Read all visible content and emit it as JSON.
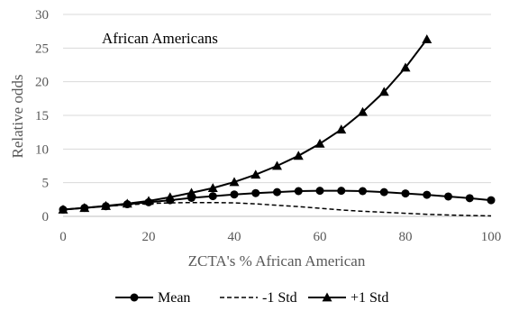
{
  "chart_data": {
    "type": "line",
    "annotation": "African Americans",
    "xlabel": "ZCTA's % African American",
    "ylabel": "Relative odds",
    "xlim": [
      0,
      100
    ],
    "ylim": [
      0,
      30
    ],
    "x_ticks": [
      0,
      20,
      40,
      60,
      80,
      100
    ],
    "y_ticks": [
      0,
      5,
      10,
      15,
      20,
      25,
      30
    ],
    "grid": "horizontal",
    "legend_position": "bottom",
    "series": [
      {
        "name": "Mean",
        "marker": "circle",
        "line_style": "solid",
        "color": "#000000",
        "x": [
          0,
          5,
          10,
          15,
          20,
          25,
          30,
          35,
          40,
          45,
          50,
          55,
          60,
          65,
          70,
          75,
          80,
          85,
          90,
          95,
          100
        ],
        "y": [
          1.0,
          1.25,
          1.5,
          1.8,
          2.1,
          2.4,
          2.75,
          3.0,
          3.25,
          3.45,
          3.6,
          3.75,
          3.8,
          3.8,
          3.75,
          3.6,
          3.4,
          3.2,
          2.95,
          2.7,
          2.4
        ]
      },
      {
        "name": "-1 Std",
        "marker": "none",
        "line_style": "dashed",
        "color": "#000000",
        "x": [
          0,
          5,
          10,
          15,
          20,
          25,
          30,
          35,
          40,
          45,
          50,
          55,
          60,
          65,
          70,
          75,
          80,
          85,
          90,
          95,
          100
        ],
        "y": [
          1.0,
          1.25,
          1.5,
          1.7,
          1.9,
          2.0,
          2.05,
          2.05,
          2.0,
          1.85,
          1.65,
          1.45,
          1.2,
          0.95,
          0.75,
          0.6,
          0.45,
          0.3,
          0.2,
          0.12,
          0.07
        ]
      },
      {
        "name": "+1 Std",
        "marker": "triangle",
        "line_style": "solid",
        "color": "#000000",
        "x": [
          0,
          5,
          10,
          15,
          20,
          25,
          30,
          35,
          40,
          45,
          50,
          55,
          60,
          65,
          70,
          75,
          80,
          85
        ],
        "y": [
          1.0,
          1.25,
          1.55,
          1.9,
          2.3,
          2.85,
          3.5,
          4.2,
          5.1,
          6.2,
          7.5,
          9.0,
          10.8,
          12.9,
          15.5,
          18.5,
          22.1,
          26.3
        ]
      }
    ]
  }
}
